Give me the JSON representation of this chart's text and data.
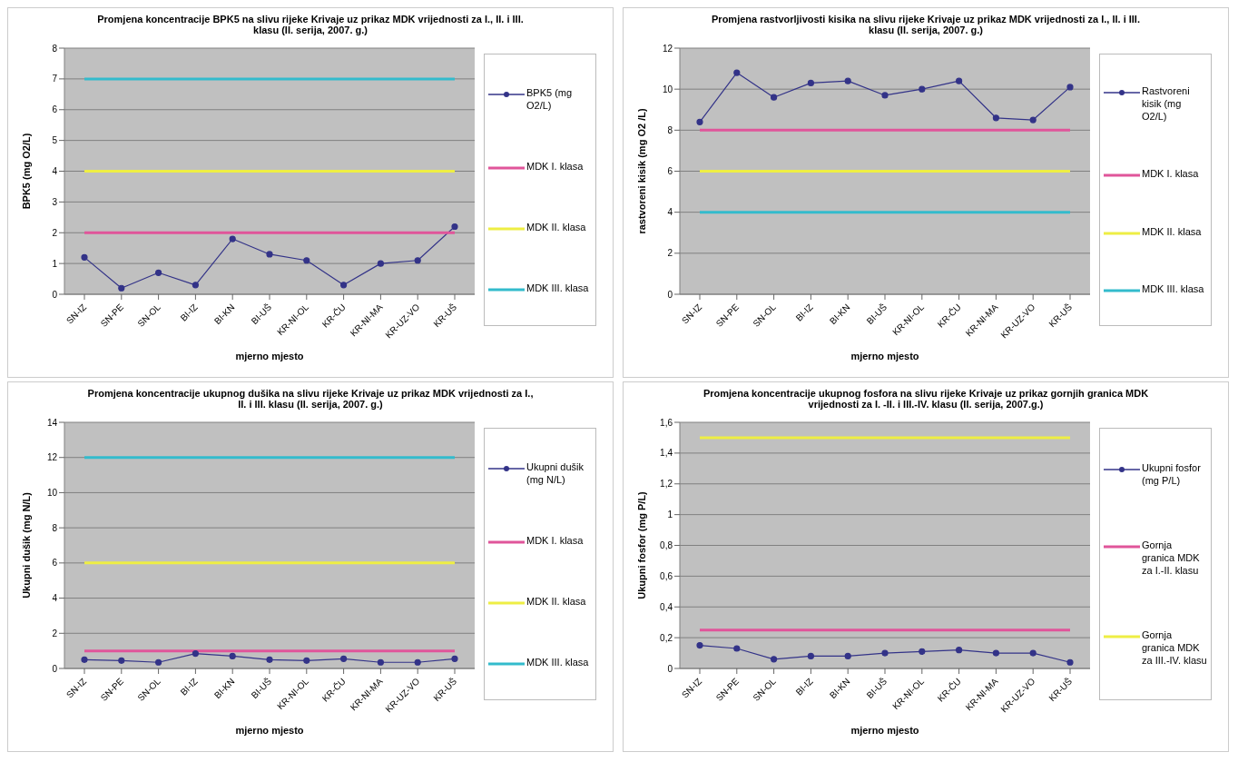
{
  "chart_data": [
    {
      "type": "line",
      "title": "Promjena koncentracije BPK5 na slivu rijeke Krivaje uz prikaz MDK vrijednosti za I., II. i III. klasu (II. serija, 2007. g.)",
      "xlabel": "mjerno mjesto",
      "ylabel": "BPK5 (mg O2/L)",
      "categories": [
        "SN-IZ",
        "SN-PE",
        "SN-OL",
        "BI-IZ",
        "BI-KN",
        "BI-UŠ",
        "KR-NI-OL",
        "KR-ČU",
        "KR-NI-MA",
        "KR-UZ-VO",
        "KR-UŠ"
      ],
      "ylim": [
        0,
        8
      ],
      "yticks": [
        0,
        1,
        2,
        3,
        4,
        5,
        6,
        7,
        8
      ],
      "grid": "y",
      "legend": "right",
      "marker": "circle",
      "series": [
        {
          "name": "BPK5 (mg O2/L)",
          "color": "#333388",
          "values": [
            1.2,
            0.2,
            0.7,
            0.3,
            1.8,
            1.3,
            1.1,
            0.3,
            1.0,
            1.1,
            2.2
          ]
        },
        {
          "name": "MDK I. klasa",
          "color": "#e0559a",
          "marker": "none",
          "values": [
            2,
            2,
            2,
            2,
            2,
            2,
            2,
            2,
            2,
            2,
            2
          ]
        },
        {
          "name": "MDK II. klasa",
          "color": "#eeee44",
          "marker": "none",
          "values": [
            4,
            4,
            4,
            4,
            4,
            4,
            4,
            4,
            4,
            4,
            4
          ]
        },
        {
          "name": "MDK III. klasa",
          "color": "#33bbcc",
          "marker": "none",
          "values": [
            7,
            7,
            7,
            7,
            7,
            7,
            7,
            7,
            7,
            7,
            7
          ]
        }
      ]
    },
    {
      "type": "line",
      "title": "Promjena rastvorljivosti kisika na slivu rijeke Krivaje uz prikaz MDK vrijednosti za I., II. i III. klasu (II. serija, 2007. g.)",
      "xlabel": "mjerno mjesto",
      "ylabel": "rastvoreni kisik (mg O2 /L)",
      "categories": [
        "SN-IZ",
        "SN-PE",
        "SN-OL",
        "BI-IZ",
        "BI-KN",
        "BI-UŠ",
        "KR-NI-OL",
        "KR-ČU",
        "KR-NI-MA",
        "KR-UZ-VO",
        "KR-UŠ"
      ],
      "ylim": [
        0,
        12
      ],
      "yticks": [
        0,
        2,
        4,
        6,
        8,
        10,
        12
      ],
      "grid": "y",
      "legend": "right",
      "marker": "circle",
      "series": [
        {
          "name": "Rastvoreni kisik (mg O2/L)",
          "color": "#333388",
          "values": [
            8.4,
            10.8,
            9.6,
            10.3,
            10.4,
            9.7,
            10.0,
            10.4,
            8.6,
            8.5,
            10.1
          ]
        },
        {
          "name": "MDK I. klasa",
          "color": "#e0559a",
          "marker": "none",
          "values": [
            8,
            8,
            8,
            8,
            8,
            8,
            8,
            8,
            8,
            8,
            8
          ]
        },
        {
          "name": "MDK II. klasa",
          "color": "#eeee44",
          "marker": "none",
          "values": [
            6,
            6,
            6,
            6,
            6,
            6,
            6,
            6,
            6,
            6,
            6
          ]
        },
        {
          "name": "MDK III. klasa",
          "color": "#33bbcc",
          "marker": "none",
          "values": [
            4,
            4,
            4,
            4,
            4,
            4,
            4,
            4,
            4,
            4,
            4
          ]
        }
      ]
    },
    {
      "type": "line",
      "title": "Promjena koncentracije ukupnog dušika na slivu rijeke Krivaje uz prikaz MDK vrijednosti za I., II. i III. klasu  (II. serija, 2007. g.)",
      "xlabel": "mjerno mjesto",
      "ylabel": "Ukupni dušik (mg N/L)",
      "categories": [
        "SN-IZ",
        "SN-PE",
        "SN-OL",
        "BI-IZ",
        "BI-KN",
        "BI-UŠ",
        "KR-NI-OL",
        "KR-ČU",
        "KR-NI-MA",
        "KR-UZ-VO",
        "KR-UŠ"
      ],
      "ylim": [
        0,
        14
      ],
      "yticks": [
        0,
        2,
        4,
        6,
        8,
        10,
        12,
        14
      ],
      "grid": "y",
      "legend": "right",
      "marker": "circle",
      "series": [
        {
          "name": "Ukupni dušik (mg N/L)",
          "color": "#333388",
          "values": [
            0.5,
            0.45,
            0.35,
            0.85,
            0.7,
            0.5,
            0.45,
            0.55,
            0.35,
            0.35,
            0.55
          ]
        },
        {
          "name": "MDK I. klasa",
          "color": "#e0559a",
          "marker": "none",
          "values": [
            1,
            1,
            1,
            1,
            1,
            1,
            1,
            1,
            1,
            1,
            1
          ]
        },
        {
          "name": "MDK II. klasa",
          "color": "#eeee44",
          "marker": "none",
          "values": [
            6,
            6,
            6,
            6,
            6,
            6,
            6,
            6,
            6,
            6,
            6
          ]
        },
        {
          "name": "MDK III. klasa",
          "color": "#33bbcc",
          "marker": "none",
          "values": [
            12,
            12,
            12,
            12,
            12,
            12,
            12,
            12,
            12,
            12,
            12
          ]
        }
      ]
    },
    {
      "type": "line",
      "title": "Promjena koncentracije ukupnog fosfora na slivu rijeke  Krivaje uz prikaz gornjih granica MDK vrijednosti za I. -II. i  III.-IV. klasu (II. serija, 2007.g.)",
      "xlabel": "mjerno mjesto",
      "ylabel": "Ukupni fosfor (mg P/L)",
      "categories": [
        "SN-IZ",
        "SN-PE",
        "SN-OL",
        "BI-IZ",
        "BI-KN",
        "BI-UŠ",
        "KR-NI-OL",
        "KR-ČU",
        "KR-NI-MA",
        "KR-UZ-VO",
        "KR-UŠ"
      ],
      "ylim": [
        0,
        1.6
      ],
      "yticks": [
        0,
        {
          "value": 0.2,
          "label": "0,2"
        },
        {
          "value": 0.4,
          "label": "0,4"
        },
        {
          "value": 0.6,
          "label": "0,6"
        },
        {
          "value": 0.8,
          "label": "0,8"
        },
        1,
        {
          "value": 1.2,
          "label": "1,2"
        },
        {
          "value": 1.4,
          "label": "1,4"
        },
        {
          "value": 1.6,
          "label": "1,6"
        }
      ],
      "grid": "y",
      "legend": "right",
      "marker": "circle",
      "series": [
        {
          "name": "Ukupni fosfor (mg P/L)",
          "color": "#333388",
          "values": [
            0.15,
            0.13,
            0.06,
            0.08,
            0.08,
            0.1,
            0.11,
            0.12,
            0.1,
            0.1,
            0.04
          ]
        },
        {
          "name": "Gornja granica MDK za I.-II. klasu",
          "color": "#e0559a",
          "marker": "none",
          "values": [
            0.25,
            0.25,
            0.25,
            0.25,
            0.25,
            0.25,
            0.25,
            0.25,
            0.25,
            0.25,
            0.25
          ]
        },
        {
          "name": "Gornja granica MDK za III.-IV. klasu",
          "color": "#eeee44",
          "marker": "none",
          "values": [
            1.5,
            1.5,
            1.5,
            1.5,
            1.5,
            1.5,
            1.5,
            1.5,
            1.5,
            1.5,
            1.5
          ]
        }
      ]
    }
  ]
}
